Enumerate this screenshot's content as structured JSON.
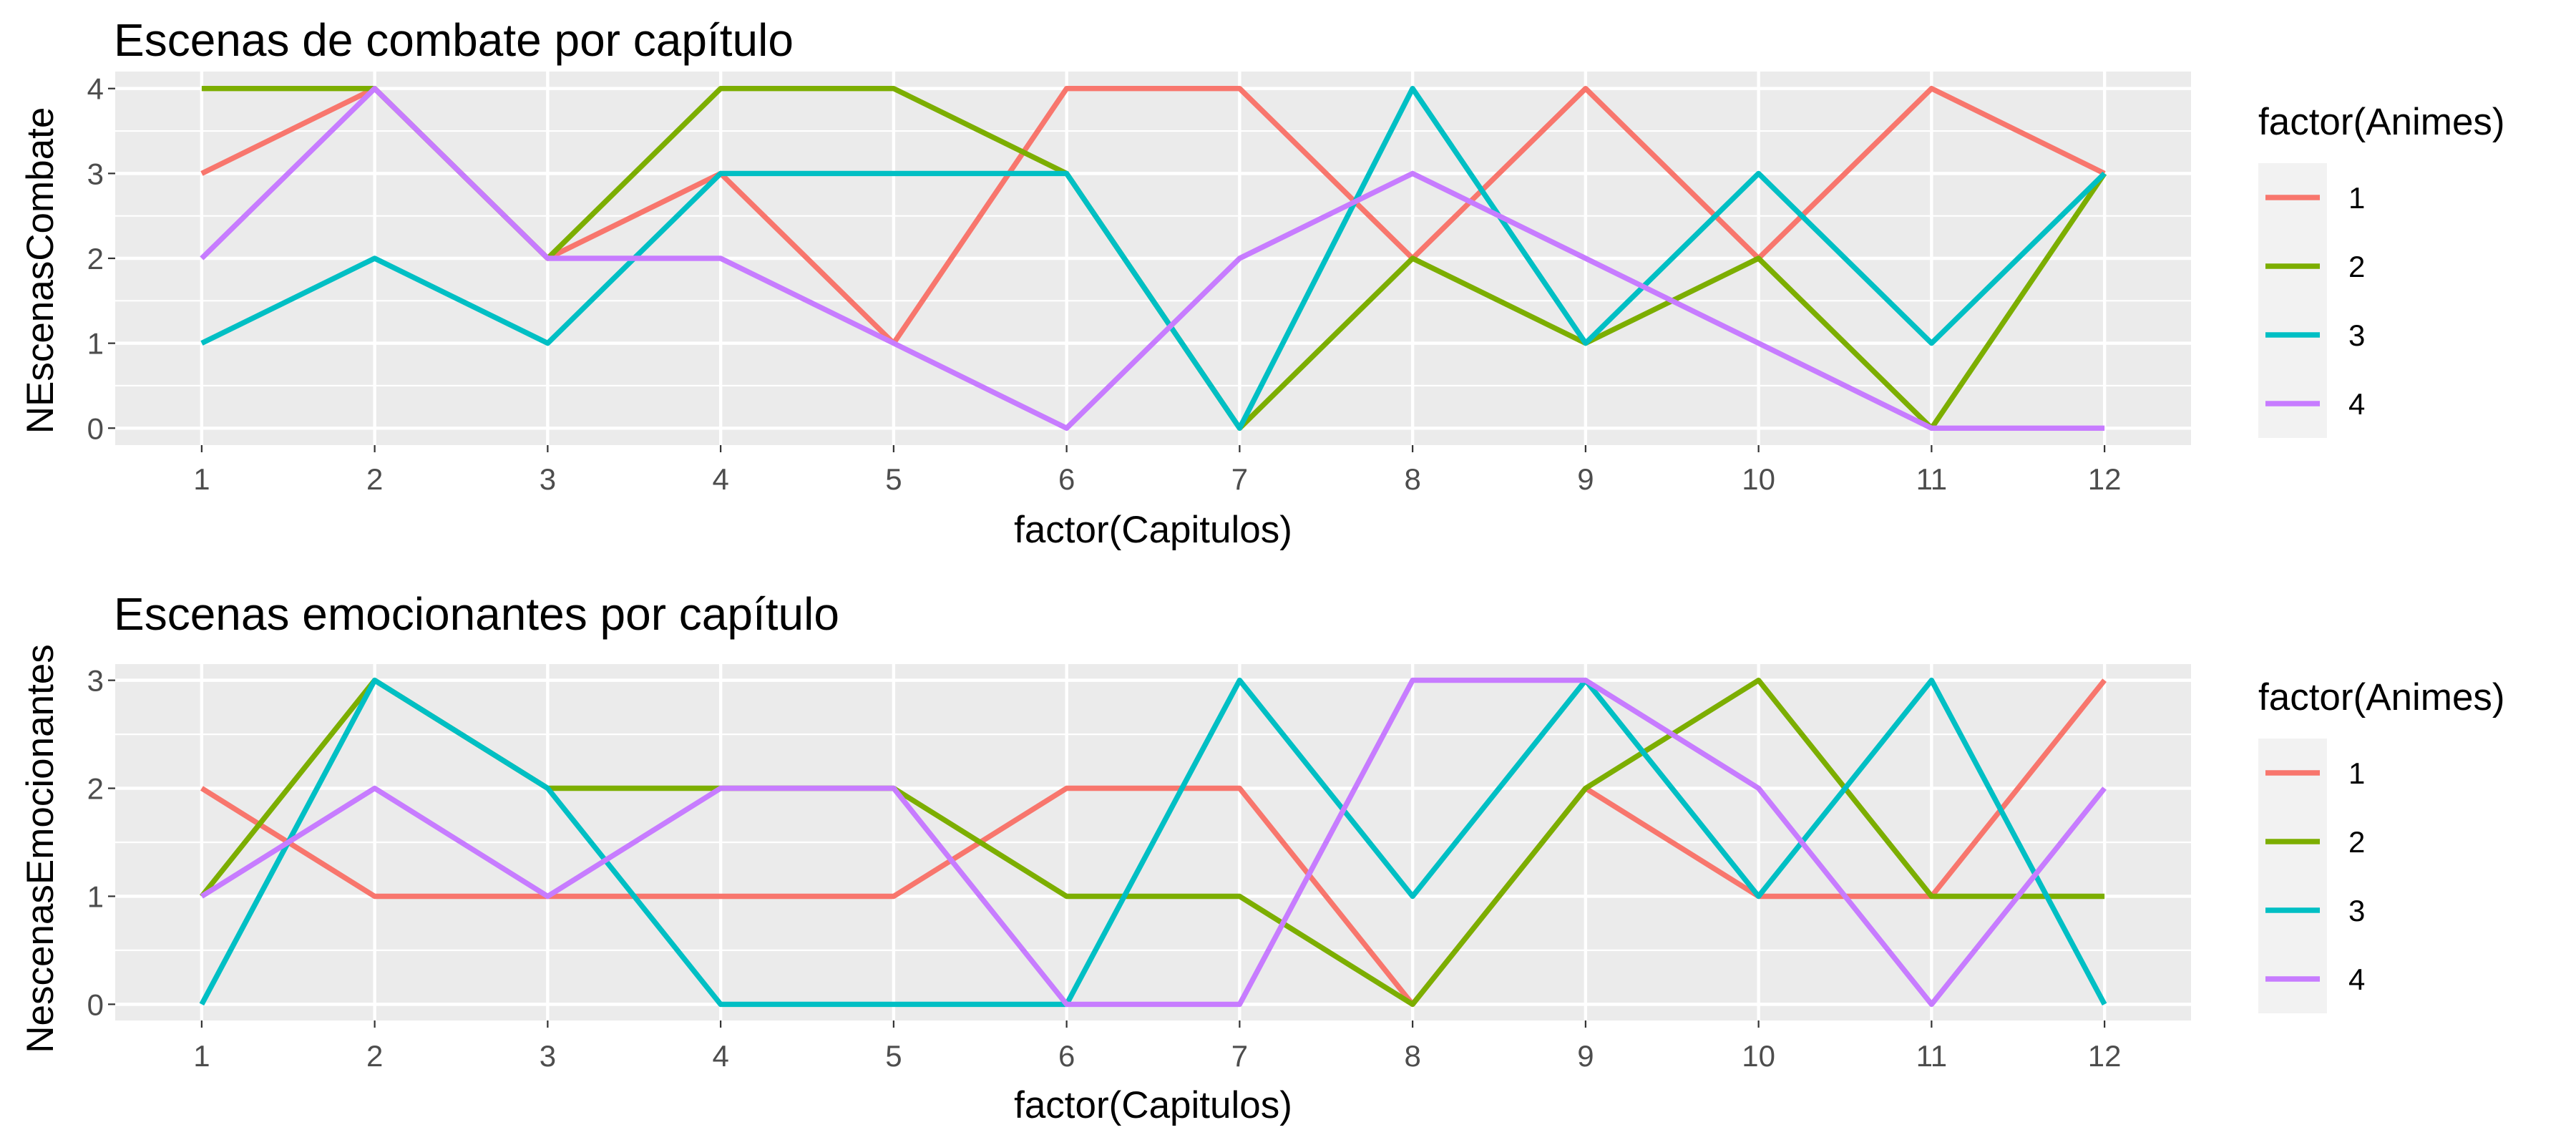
{
  "chart_data": [
    {
      "type": "line",
      "title": "Escenas de combate por capítulo",
      "xlabel": "factor(Capitulos)",
      "ylabel": "NEscenasCombate",
      "categories": [
        "1",
        "2",
        "3",
        "4",
        "5",
        "6",
        "7",
        "8",
        "9",
        "10",
        "11",
        "12"
      ],
      "y_ticks": [
        "0",
        "1",
        "2",
        "3",
        "4"
      ],
      "ylim": [
        0,
        4
      ],
      "grid": true,
      "legend": {
        "title": "factor(Animes)",
        "position": "right"
      },
      "series": [
        {
          "name": "1",
          "color": "#f8766d",
          "values": [
            3,
            4,
            2,
            3,
            1,
            4,
            4,
            2,
            4,
            2,
            4,
            3
          ]
        },
        {
          "name": "2",
          "color": "#7cae00",
          "values": [
            4,
            4,
            2,
            4,
            4,
            3,
            0,
            2,
            1,
            2,
            0,
            3
          ]
        },
        {
          "name": "3",
          "color": "#00bfc4",
          "values": [
            1,
            2,
            1,
            3,
            3,
            3,
            0,
            4,
            1,
            3,
            1,
            3
          ]
        },
        {
          "name": "4",
          "color": "#c77cff",
          "values": [
            2,
            4,
            2,
            2,
            1,
            0,
            2,
            3,
            2,
            1,
            0,
            0
          ]
        }
      ]
    },
    {
      "type": "line",
      "title": "Escenas emocionantes por capítulo",
      "xlabel": "factor(Capitulos)",
      "ylabel": "NescenasEmocionantes",
      "categories": [
        "1",
        "2",
        "3",
        "4",
        "5",
        "6",
        "7",
        "8",
        "9",
        "10",
        "11",
        "12"
      ],
      "y_ticks": [
        "0",
        "1",
        "2",
        "3"
      ],
      "ylim": [
        0,
        3
      ],
      "grid": true,
      "legend": {
        "title": "factor(Animes)",
        "position": "right"
      },
      "series": [
        {
          "name": "1",
          "color": "#f8766d",
          "values": [
            2,
            1,
            1,
            1,
            1,
            2,
            2,
            0,
            2,
            1,
            1,
            3
          ]
        },
        {
          "name": "2",
          "color": "#7cae00",
          "values": [
            1,
            3,
            2,
            2,
            2,
            1,
            1,
            0,
            2,
            3,
            1,
            1
          ]
        },
        {
          "name": "3",
          "color": "#00bfc4",
          "values": [
            0,
            3,
            2,
            0,
            0,
            0,
            3,
            1,
            3,
            1,
            3,
            0
          ]
        },
        {
          "name": "4",
          "color": "#c77cff",
          "values": [
            1,
            2,
            1,
            2,
            2,
            0,
            0,
            3,
            3,
            2,
            0,
            2
          ]
        }
      ]
    }
  ]
}
